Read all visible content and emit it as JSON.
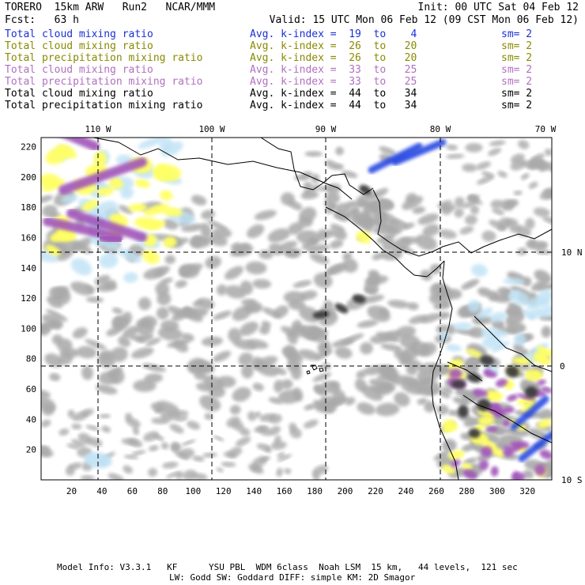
{
  "header": {
    "model": "TORERO  15km ARW   Run2   NCAR/MMM",
    "init": "Init: 00 UTC Sat 04 Feb 12",
    "fcst": "Fcst:   63 h",
    "valid": "Valid: 15 UTC Mon 06 Feb 12 (09 CST Mon 06 Feb 12)"
  },
  "legend": [
    {
      "name": "Total cloud mixing ratio",
      "k": "Avg. k-index =  19  to    4",
      "sm": "sm= 2",
      "color": "#1a2fd6"
    },
    {
      "name": "Total cloud mixing ratio",
      "k": "Avg. k-index =  26  to   20",
      "sm": "sm= 2",
      "color": "#8a8a00"
    },
    {
      "name": "Total precipitation mixing ratio",
      "k": "Avg. k-index =  26  to   20",
      "sm": "sm= 2",
      "color": "#8a8a00"
    },
    {
      "name": "Total cloud mixing ratio",
      "k": "Avg. k-index =  33  to   25",
      "sm": "sm= 2",
      "color": "#b070c0"
    },
    {
      "name": "Total precipitation mixing ratio",
      "k": "Avg. k-index =  33  to   25",
      "sm": "sm= 2",
      "color": "#b070c0"
    },
    {
      "name": "Total cloud mixing ratio",
      "k": "Avg. k-index =  44  to   34",
      "sm": "sm= 2",
      "color": "#000000"
    },
    {
      "name": "Total precipitation mixing ratio",
      "k": "Avg. k-index =  44  to   34",
      "sm": "sm= 2",
      "color": "#000000"
    }
  ],
  "map": {
    "lon_labels": [
      "110 W",
      "100 W",
      "90 W",
      "80 W",
      "70 W"
    ],
    "lat_labels": [
      "10 N",
      "0",
      "10 S"
    ],
    "x_ticks": [
      "20",
      "40",
      "60",
      "80",
      "100",
      "120",
      "140",
      "160",
      "180",
      "200",
      "220",
      "240",
      "260",
      "280",
      "300",
      "320"
    ],
    "y_ticks": [
      "220",
      "200",
      "180",
      "160",
      "140",
      "120",
      "100",
      "80",
      "60",
      "40",
      "20"
    ],
    "colors": {
      "gray": "#a9a9a9",
      "dark": "#3c3c3c",
      "yellow": "#ffff66",
      "purple": "#a055b8",
      "lightblue": "#bfe2f5",
      "blue": "#1c3fe0"
    }
  },
  "footer": {
    "line1": "Model Info: V3.3.1   KF      YSU PBL  WDM 6class  Noah LSM  15 km,   44 levels,  121 sec",
    "line2": "LW: Godd SW: Goddard DIFF: simple KM: 2D Smagor"
  }
}
